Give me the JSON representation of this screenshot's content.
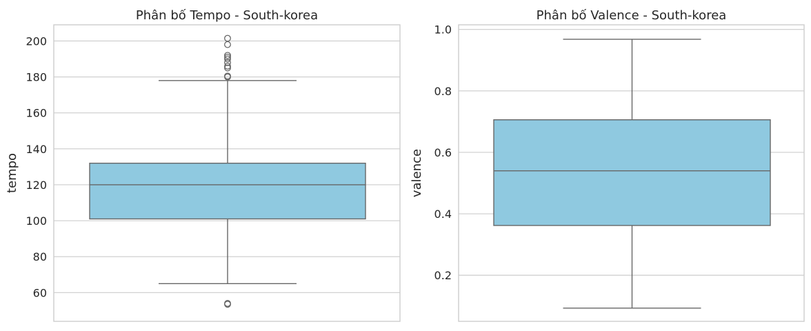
{
  "chart_data": [
    {
      "type": "boxplot",
      "title": "Phân bố Tempo - South-korea",
      "xlabel": "",
      "ylabel": "tempo",
      "ylim": [
        44,
        209
      ],
      "yticks": [
        60,
        80,
        100,
        120,
        140,
        160,
        180,
        200
      ],
      "grid": true,
      "box_color": "#8fc9e0",
      "line_color": "#666666",
      "box": {
        "whisker_low": 65,
        "q1": 101,
        "median": 120,
        "q3": 132,
        "whisker_high": 178,
        "outliers": [
          53.5,
          54,
          180,
          180.5,
          185,
          186,
          188,
          190,
          191,
          192,
          198,
          201.5
        ]
      }
    },
    {
      "type": "boxplot",
      "title": "Phân bố Valence - South-korea",
      "xlabel": "",
      "ylabel": "valence",
      "ylim": [
        0.05,
        1.015
      ],
      "yticks": [
        0.2,
        0.4,
        0.6,
        0.8,
        1.0
      ],
      "grid": true,
      "box_color": "#8fc9e0",
      "line_color": "#666666",
      "box": {
        "whisker_low": 0.093,
        "q1": 0.362,
        "median": 0.54,
        "q3": 0.706,
        "whisker_high": 0.968,
        "outliers": []
      }
    }
  ]
}
